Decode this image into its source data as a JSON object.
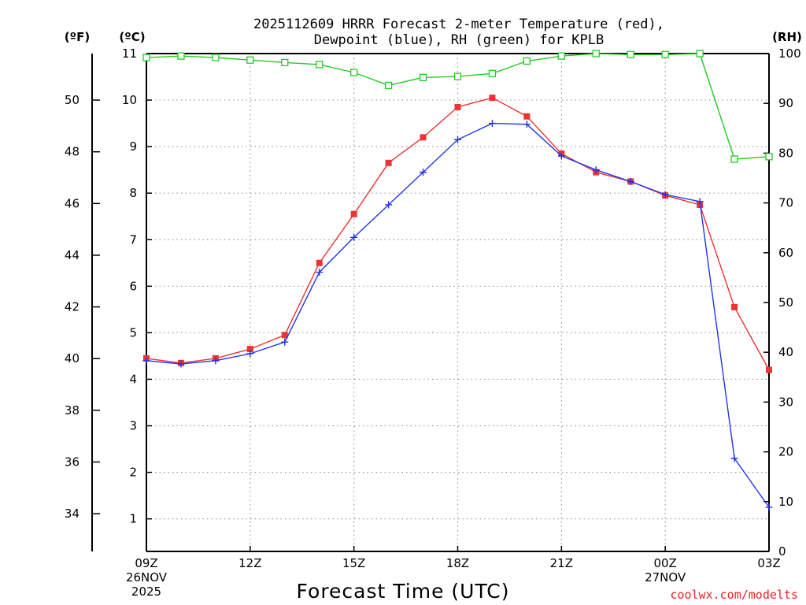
{
  "chart_data": {
    "type": "line",
    "title_line1": "2025112609 HRRR Forecast 2-meter Temperature (red),",
    "title_line2": "Dewpoint (blue), RH (green) for KPLB",
    "unit_f": "(ºF)",
    "unit_c": "(ºC)",
    "unit_rh": "(RH)",
    "xlabel": "Forecast Time (UTC)",
    "credit": "coolwx.com/modelts",
    "x_tick_labels": [
      "09Z",
      "12Z",
      "15Z",
      "18Z",
      "21Z",
      "00Z",
      "03Z"
    ],
    "x_date_labels": [
      {
        "hour": 0,
        "line1": "26NOV",
        "line2": "2025"
      },
      {
        "hour": 15,
        "line1": "27NOV",
        "line2": ""
      }
    ],
    "x_range_hours": [
      0,
      18
    ],
    "x_tick_step_hours": 3,
    "celsius_range": [
      0.3,
      11
    ],
    "celsius_ticks": [
      "1",
      "2",
      "3",
      "4",
      "5",
      "6",
      "7",
      "8",
      "9",
      "10",
      "11"
    ],
    "fahrenheit_ticks": [
      "34",
      "36",
      "38",
      "40",
      "42",
      "44",
      "46",
      "48",
      "50"
    ],
    "rh_range": [
      0,
      100
    ],
    "rh_ticks": [
      "0",
      "10",
      "20",
      "30",
      "40",
      "50",
      "60",
      "70",
      "80",
      "90",
      "100"
    ],
    "colors": {
      "temperature": "#ee3333",
      "dewpoint": "#2233ee",
      "rh": "#22cc22",
      "credit": "#ee2222",
      "grid": "#999999"
    },
    "series": [
      {
        "name": "Temperature (°C)",
        "axis": "celsius",
        "marker": "filled-square",
        "values": [
          4.45,
          4.35,
          4.45,
          4.65,
          4.95,
          6.5,
          7.55,
          8.65,
          9.2,
          9.85,
          10.05,
          9.65,
          8.85,
          8.45,
          8.25,
          7.95,
          7.75,
          5.55,
          4.2
        ]
      },
      {
        "name": "Dewpoint (°C)",
        "axis": "celsius",
        "marker": "plus",
        "values": [
          4.4,
          4.33,
          4.4,
          4.55,
          4.8,
          6.3,
          7.05,
          7.75,
          8.45,
          9.15,
          9.5,
          9.48,
          8.8,
          8.5,
          8.25,
          7.97,
          7.82,
          2.3,
          1.25
        ]
      },
      {
        "name": "RH (%)",
        "axis": "rh",
        "marker": "open-square",
        "values": [
          99.2,
          99.5,
          99.2,
          98.7,
          98.2,
          97.8,
          96.2,
          93.6,
          95.2,
          95.4,
          96.0,
          98.5,
          99.5,
          100,
          99.8,
          99.8,
          100,
          78.8,
          79.3
        ]
      }
    ]
  }
}
